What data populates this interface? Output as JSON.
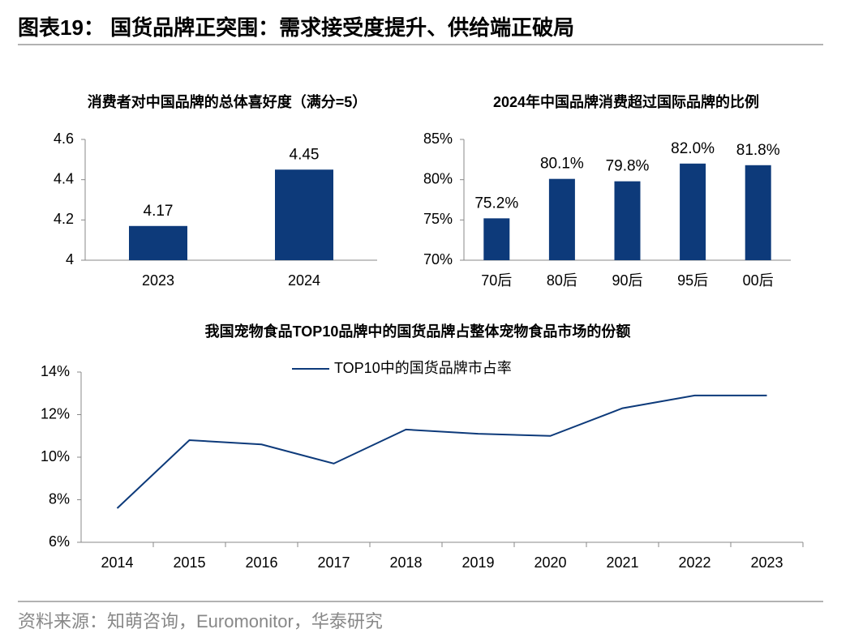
{
  "header": {
    "title": "图表19： 国货品牌正突围：需求接受度提升、供给端正破局"
  },
  "chart_data": [
    {
      "type": "bar",
      "title": "消费者对中国品牌的总体喜好度（满分=5）",
      "categories": [
        "2023",
        "2024"
      ],
      "values": [
        4.17,
        4.45
      ],
      "color": "#0d3a7a",
      "ylim": [
        4,
        4.6
      ],
      "yticks": [
        4,
        4.2,
        4.4,
        4.6
      ]
    },
    {
      "type": "bar",
      "title": "2024年中国品牌消费超过国际品牌的比例",
      "categories": [
        "70后",
        "80后",
        "90后",
        "95后",
        "00后"
      ],
      "values": [
        75.2,
        80.1,
        79.8,
        82.0,
        81.8
      ],
      "value_labels": [
        "75.2%",
        "80.1%",
        "79.8%",
        "82.0%",
        "81.8%"
      ],
      "color": "#0d3a7a",
      "ylim": [
        70,
        85
      ],
      "yticks": [
        {
          "value": 70,
          "label": "70%"
        },
        {
          "value": 75,
          "label": "75%"
        },
        {
          "value": 80,
          "label": "80%"
        },
        {
          "value": 85,
          "label": "85%"
        }
      ]
    },
    {
      "type": "line",
      "title": "我国宠物食品TOP10品牌中的国货品牌占整体宠物食品市场的份额",
      "categories": [
        "2014",
        "2015",
        "2016",
        "2017",
        "2018",
        "2019",
        "2020",
        "2021",
        "2022",
        "2023"
      ],
      "series": [
        {
          "name": "TOP10中的国货品牌市占率",
          "color": "#0d3a7a",
          "values": [
            7.6,
            10.8,
            10.6,
            9.7,
            11.3,
            11.1,
            11.0,
            12.3,
            12.9,
            12.9
          ]
        }
      ],
      "ylim": [
        6,
        14
      ],
      "yticks": [
        {
          "value": 6,
          "label": "6%"
        },
        {
          "value": 8,
          "label": "8%"
        },
        {
          "value": 10,
          "label": "10%"
        },
        {
          "value": 12,
          "label": "12%"
        },
        {
          "value": 14,
          "label": "14%"
        }
      ],
      "legend": "top"
    }
  ],
  "source": "资料来源：知萌咨询，Euromonitor，华泰研究"
}
